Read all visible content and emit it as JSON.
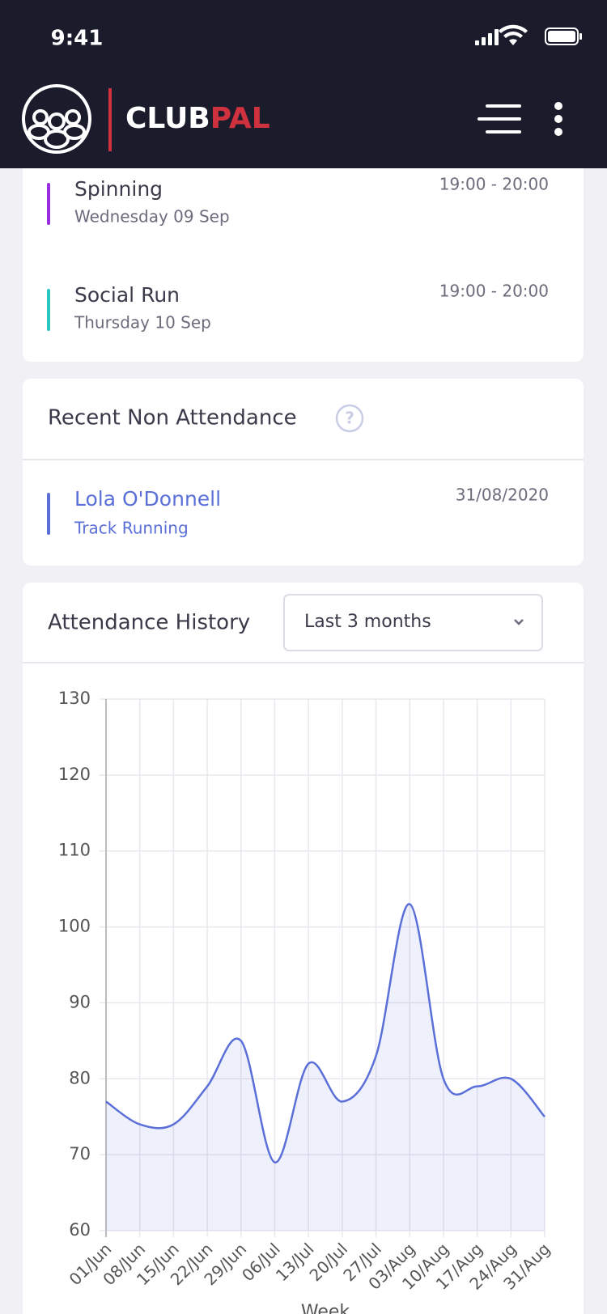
{
  "status_bar": {
    "time": "9:41"
  },
  "header": {
    "brand_left": "CLUB",
    "brand_right": "PAL"
  },
  "schedule": {
    "items": [
      {
        "title": "Spinning",
        "date": "Wednesday 09 Sep",
        "time": "19:00 - 20:00"
      },
      {
        "title": "Social Run",
        "date": "Thursday 10 Sep",
        "time": "19:00 - 20:00"
      }
    ]
  },
  "non_attendance": {
    "title": "Recent Non Attendance",
    "help": "?",
    "items": [
      {
        "name": "Lola O'Donnell",
        "activity": "Track Running",
        "date": "31/08/2020"
      }
    ]
  },
  "attendance": {
    "title": "Attendance History",
    "filter": "Last 3 months"
  },
  "chart_data": {
    "type": "line",
    "categories": [
      "01/Jun",
      "08/Jun",
      "15/Jun",
      "22/Jun",
      "29/Jun",
      "06/Jul",
      "13/Jul",
      "20/Jul",
      "27/Jul",
      "03/Aug",
      "10/Aug",
      "17/Aug",
      "24/Aug",
      "31/Aug"
    ],
    "values": [
      77,
      74,
      74,
      79,
      85,
      69,
      82,
      77,
      83,
      103,
      80,
      79,
      80,
      75
    ],
    "color": "#5b6fd8",
    "ylim": [
      60,
      130
    ],
    "yticks": [
      60,
      70,
      80,
      90,
      100,
      110,
      120,
      130
    ],
    "grid": true,
    "x_label": "Week"
  }
}
